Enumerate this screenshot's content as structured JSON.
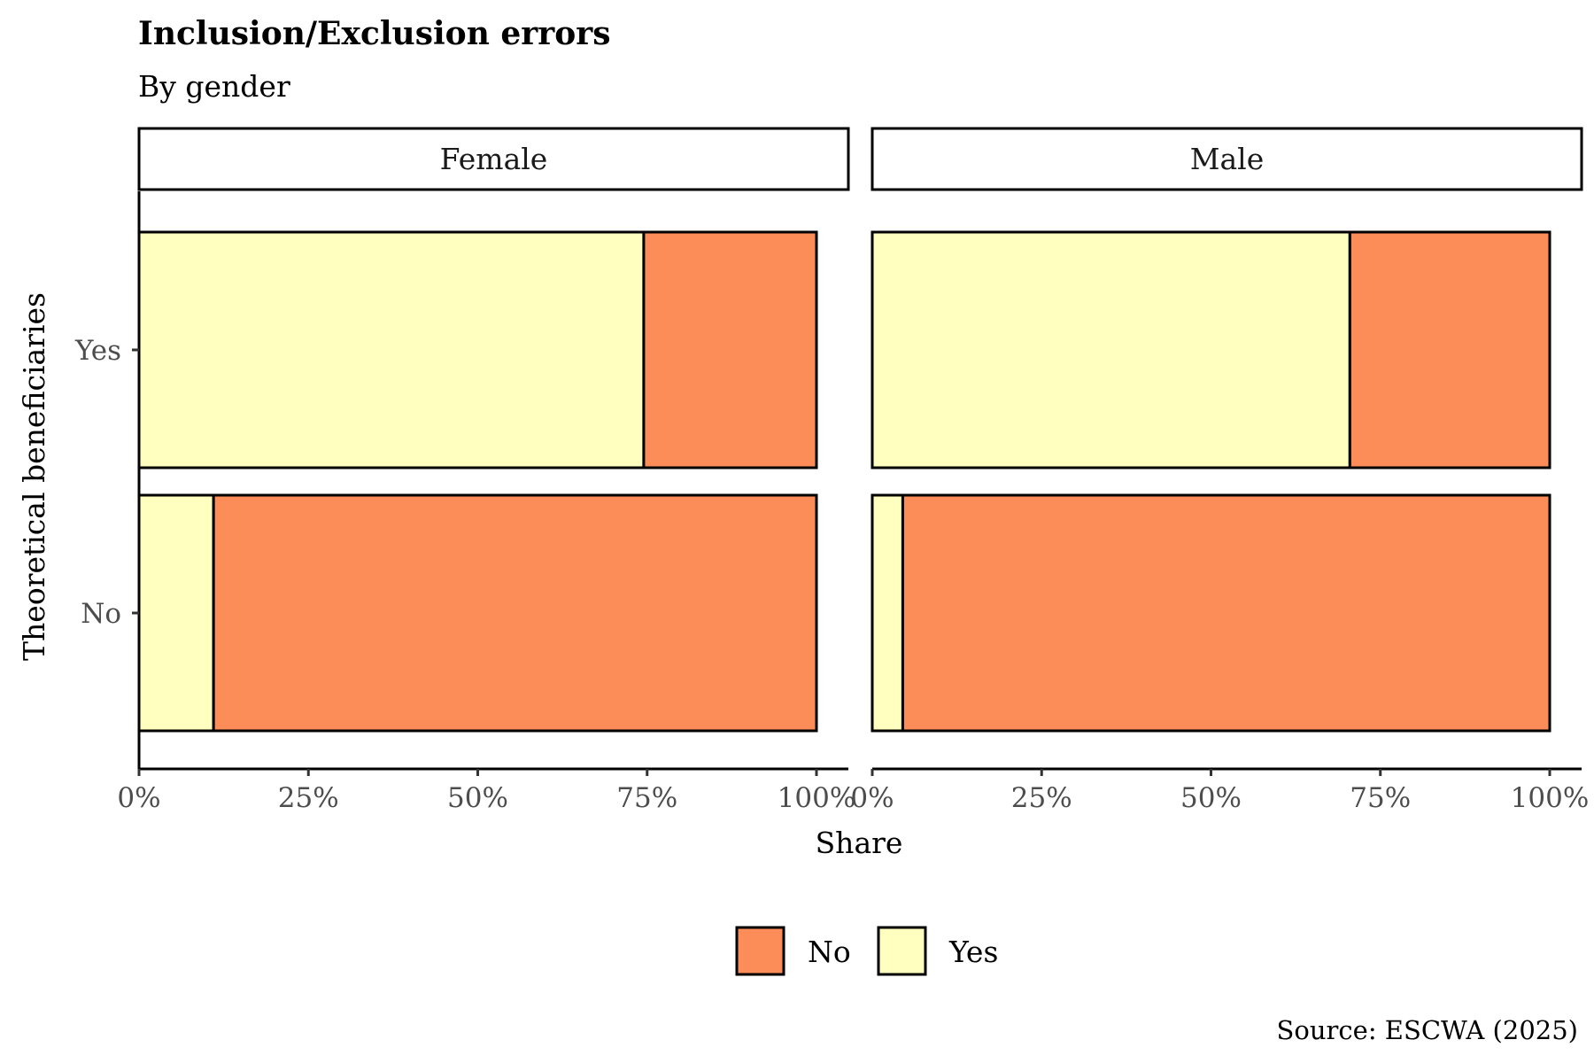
{
  "chart_data": {
    "type": "bar",
    "orientation": "horizontal",
    "stacked": true,
    "title": "Inclusion/Exclusion errors",
    "subtitle": "By gender",
    "xlabel": "Share",
    "ylabel": "Theoretical beneficiaries",
    "caption": "Source: ESCWA (2025)",
    "xlim": [
      0,
      1
    ],
    "x_ticks": [
      0,
      0.25,
      0.5,
      0.75,
      1
    ],
    "x_tick_labels": [
      "0%",
      "25%",
      "50%",
      "75%",
      "100%"
    ],
    "categories": [
      "Yes",
      "No"
    ],
    "facets": [
      {
        "label": "Female",
        "series": [
          {
            "name": "Yes",
            "values": [
              0.745,
              0.11
            ]
          },
          {
            "name": "No",
            "values": [
              0.255,
              0.89
            ]
          }
        ]
      },
      {
        "label": "Male",
        "series": [
          {
            "name": "Yes",
            "values": [
              0.705,
              0.045
            ]
          },
          {
            "name": "No",
            "values": [
              0.295,
              0.955
            ]
          }
        ]
      }
    ],
    "legend": {
      "position": "bottom",
      "entries": [
        {
          "name": "No",
          "color": "#FC8D59"
        },
        {
          "name": "Yes",
          "color": "#FFFFBF"
        }
      ]
    },
    "grid": false
  }
}
